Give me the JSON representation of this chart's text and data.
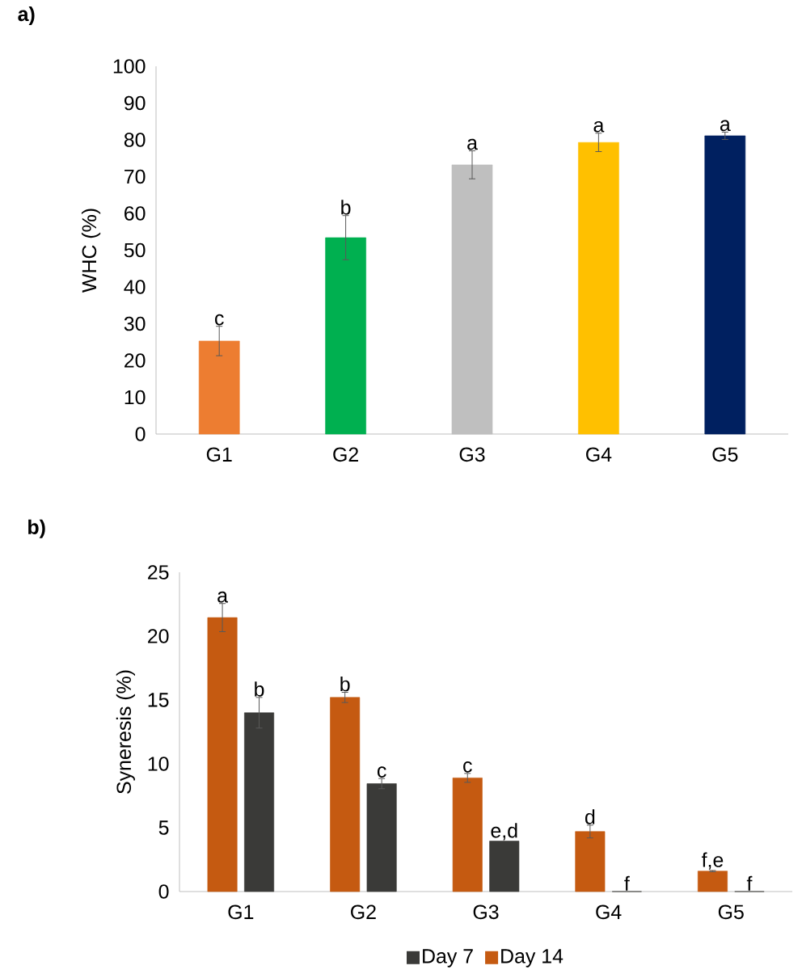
{
  "chart_data": [
    {
      "type": "bar",
      "title": "a)",
      "ylabel": "WHC (%)",
      "categories": [
        "G1",
        "G2",
        "G3",
        "G4",
        "G5"
      ],
      "values": [
        25.3,
        53.4,
        73.2,
        79.3,
        81.1
      ],
      "colors": [
        "#ed7d31",
        "#00b050",
        "#bfbfbf",
        "#ffc000",
        "#002060"
      ],
      "errors": [
        4,
        6,
        3.8,
        2.5,
        1
      ],
      "value_labels": [
        "c",
        "b",
        "a",
        "a",
        "a"
      ],
      "ylim": [
        0,
        100
      ],
      "yticks": [
        0,
        10,
        20,
        30,
        40,
        50,
        60,
        70,
        80,
        90,
        100
      ]
    },
    {
      "type": "bar",
      "title": "b)",
      "ylabel": "Syneresis (%)",
      "categories": [
        "G1",
        "G2",
        "G3",
        "G4",
        "G5"
      ],
      "series": [
        {
          "name": "Day 14",
          "color": "#c55a11",
          "values": [
            21.45,
            15.2,
            8.9,
            4.7,
            1.6
          ],
          "errors": [
            1.1,
            0.4,
            0.35,
            0.5,
            0.05
          ],
          "value_labels": [
            "a",
            "b",
            "c",
            "d",
            "f,e"
          ]
        },
        {
          "name": "Day 7",
          "color": "#3a3a38",
          "values": [
            14.0,
            8.45,
            3.95,
            0,
            0
          ],
          "errors": [
            1.2,
            0.4,
            null,
            null,
            null
          ],
          "value_labels": [
            "b",
            "c",
            "e,d",
            "f",
            "f"
          ]
        }
      ],
      "legend": "bottom",
      "ylim": [
        0,
        25
      ],
      "yticks": [
        0,
        5,
        10,
        15,
        20,
        25
      ]
    }
  ]
}
